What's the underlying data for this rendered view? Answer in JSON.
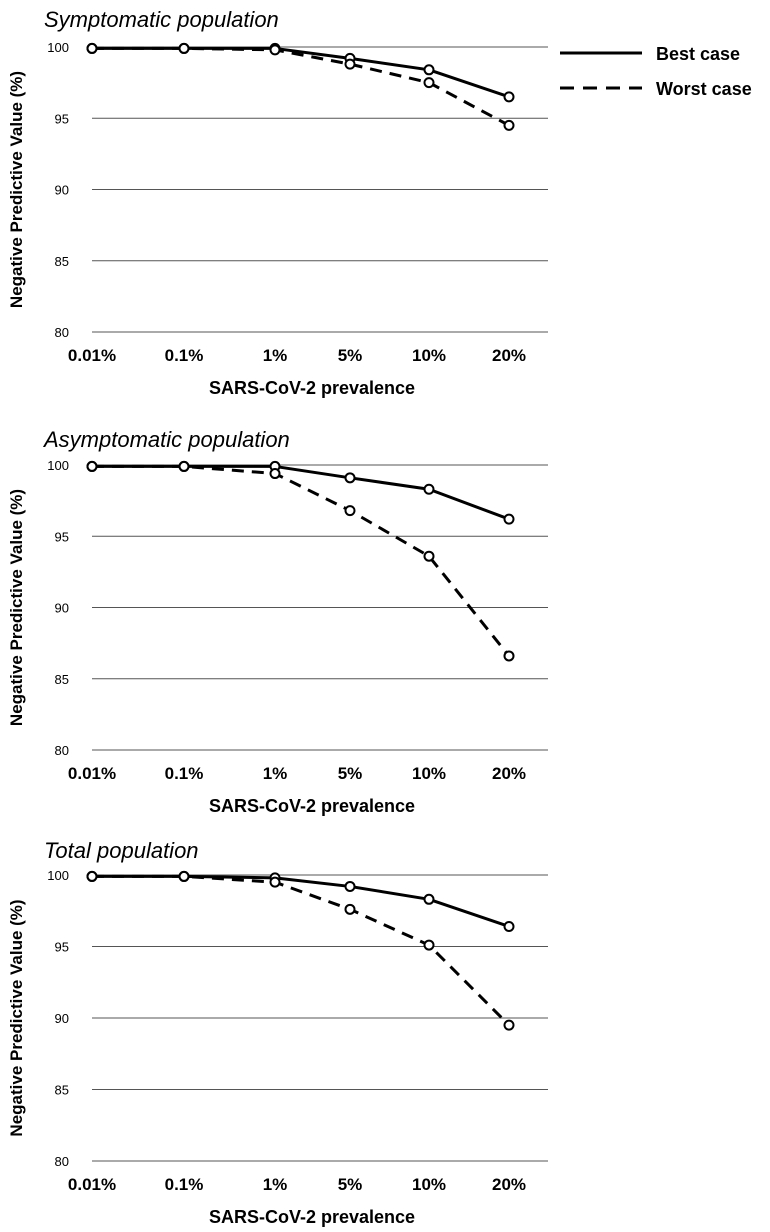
{
  "legend": {
    "best_label": "Best case",
    "worst_label": "Worst case"
  },
  "chart_data": [
    {
      "type": "line",
      "title": "Symptomatic population",
      "xlabel": "SARS-CoV-2 prevalence",
      "ylabel": "Negative Predictive Value (%)",
      "categories": [
        "0.01%",
        "0.1%",
        "1%",
        "5%",
        "10%",
        "20%"
      ],
      "yticks": [
        "80",
        "85",
        "90",
        "95",
        "100"
      ],
      "ylim": [
        80,
        100
      ],
      "series": [
        {
          "name": "Best case",
          "style": "solid",
          "values": [
            99.9,
            99.9,
            99.9,
            99.2,
            98.4,
            96.5
          ]
        },
        {
          "name": "Worst case",
          "style": "dashed",
          "values": [
            99.9,
            99.9,
            99.8,
            98.8,
            97.5,
            94.5
          ]
        }
      ]
    },
    {
      "type": "line",
      "title": "Asymptomatic population",
      "xlabel": "SARS-CoV-2  prevalence",
      "ylabel": "Negative Predictive Value (%)",
      "categories": [
        "0.01%",
        "0.1%",
        "1%",
        "5%",
        "10%",
        "20%"
      ],
      "yticks": [
        "80",
        "85",
        "90",
        "95",
        "100"
      ],
      "ylim": [
        80,
        100
      ],
      "series": [
        {
          "name": "Best case",
          "style": "solid",
          "values": [
            99.9,
            99.9,
            99.9,
            99.1,
            98.3,
            96.2
          ]
        },
        {
          "name": "Worst case",
          "style": "dashed",
          "values": [
            99.9,
            99.9,
            99.4,
            96.8,
            93.6,
            86.6
          ]
        }
      ]
    },
    {
      "type": "line",
      "title": "Total population",
      "xlabel": "SARS-CoV-2 prevalence",
      "ylabel": "Negative Predictive Value (%)",
      "categories": [
        "0.01%",
        "0.1%",
        "1%",
        "5%",
        "10%",
        "20%"
      ],
      "yticks": [
        "80",
        "85",
        "90",
        "95",
        "100"
      ],
      "ylim": [
        80,
        100
      ],
      "series": [
        {
          "name": "Best case",
          "style": "solid",
          "values": [
            99.9,
            99.9,
            99.8,
            99.2,
            98.3,
            96.4
          ]
        },
        {
          "name": "Worst case",
          "style": "dashed",
          "values": [
            99.9,
            99.9,
            99.5,
            97.6,
            95.1,
            89.5
          ]
        }
      ]
    }
  ]
}
